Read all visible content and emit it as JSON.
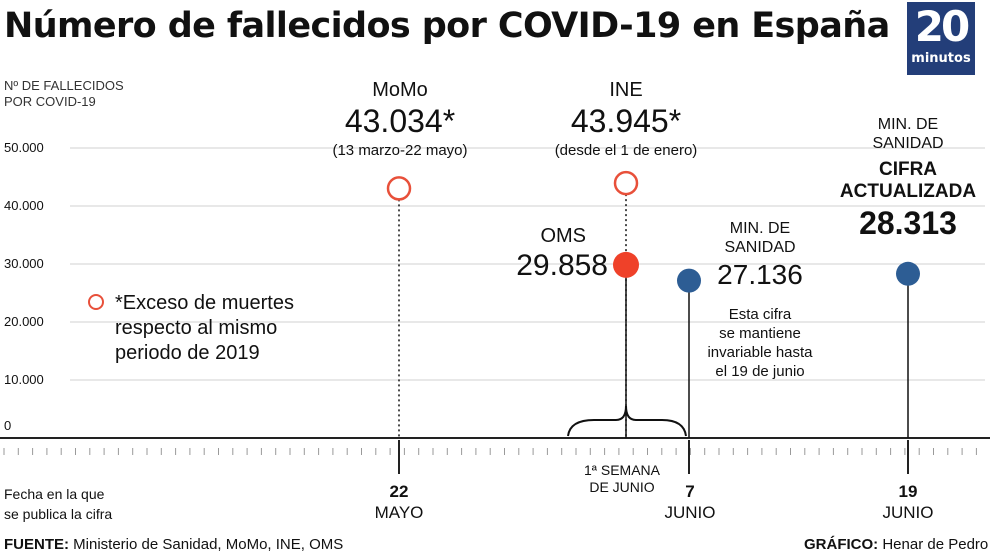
{
  "header": {
    "title": "Número de fallecidos por COVID-19 en España",
    "logo": {
      "number": "20",
      "word": "minutos"
    }
  },
  "axis": {
    "ylabel_line1": "Nº DE FALLECIDOS",
    "ylabel_line2": "POR COVID-19",
    "xlabel_line1": "Fecha en la que",
    "xlabel_line2": "se publica la cifra"
  },
  "chart_data": {
    "type": "scatter",
    "title": "Número de fallecidos por COVID-19 en España",
    "ylabel": "Nº DE FALLECIDOS POR COVID-19",
    "xlabel": "Fecha en la que se publica la cifra",
    "ylim": [
      0,
      50000
    ],
    "yticks": [
      "0",
      "10.000",
      "20.000",
      "30.000",
      "40.000",
      "50.000"
    ],
    "x_tick_labels": [
      {
        "day": "22",
        "month": "MAYO"
      },
      {
        "day": "1ª SEMANA",
        "month": "DE JUNIO"
      },
      {
        "day": "7",
        "month": "JUNIO"
      },
      {
        "day": "19",
        "month": "JUNIO"
      }
    ],
    "points": [
      {
        "source": "MoMo",
        "value": 43034,
        "label": "43.034*",
        "note": "(13 marzo-22 mayo)",
        "date": "22 MAYO",
        "style": "ring"
      },
      {
        "source": "INE",
        "value": 43945,
        "label": "43.945*",
        "note": "(desde el 1 de enero)",
        "date": "1ª SEMANA DE JUNIO",
        "style": "ring"
      },
      {
        "source": "OMS",
        "value": 29858,
        "label": "29.858",
        "date": "1ª SEMANA DE JUNIO",
        "style": "filled-red"
      },
      {
        "source": "MIN. DE SANIDAD",
        "value": 27136,
        "label": "27.136",
        "date": "7 JUNIO",
        "style": "filled-blue"
      },
      {
        "source": "MIN. DE SANIDAD",
        "value": 28313,
        "label": "28.313",
        "date": "19 JUNIO",
        "style": "filled-blue"
      }
    ],
    "legend": {
      "position": "left",
      "text": "*Exceso de muertes respecto al mismo periodo de 2019"
    },
    "colors": {
      "ring": "#e8503a",
      "oms": "#ef4129",
      "sanidad": "#2d5d94"
    }
  },
  "annotations": {
    "momo_name": "MoMo",
    "momo_value": "43.034*",
    "momo_note": "(13 marzo-22 mayo)",
    "ine_name": "INE",
    "ine_value": "43.945*",
    "ine_note": "(desde el 1 de enero)",
    "oms_name": "OMS",
    "oms_value": "29.858",
    "sd1_name_1": "MIN. DE",
    "sd1_name_2": "SANIDAD",
    "sd1_value": "27.136",
    "sd1_note_1": "Esta cifra",
    "sd1_note_2": "se mantiene",
    "sd1_note_3": "invariable hasta",
    "sd1_note_4": "el 19 de junio",
    "sd2_name_1": "MIN. DE",
    "sd2_name_2": "SANIDAD",
    "sd2_head_1": "CIFRA",
    "sd2_head_2": "ACTUALIZADA",
    "sd2_value": "28.313"
  },
  "legend": {
    "line1": "*Exceso de muertes",
    "line2": "respecto al mismo",
    "line3": "periodo de 2019"
  },
  "footer": {
    "source_label": "FUENTE:",
    "source_text": "Ministerio de Sanidad, MoMo, INE, OMS",
    "credit_label": "GRÁFICO:",
    "credit_text": "Henar de Pedro"
  }
}
